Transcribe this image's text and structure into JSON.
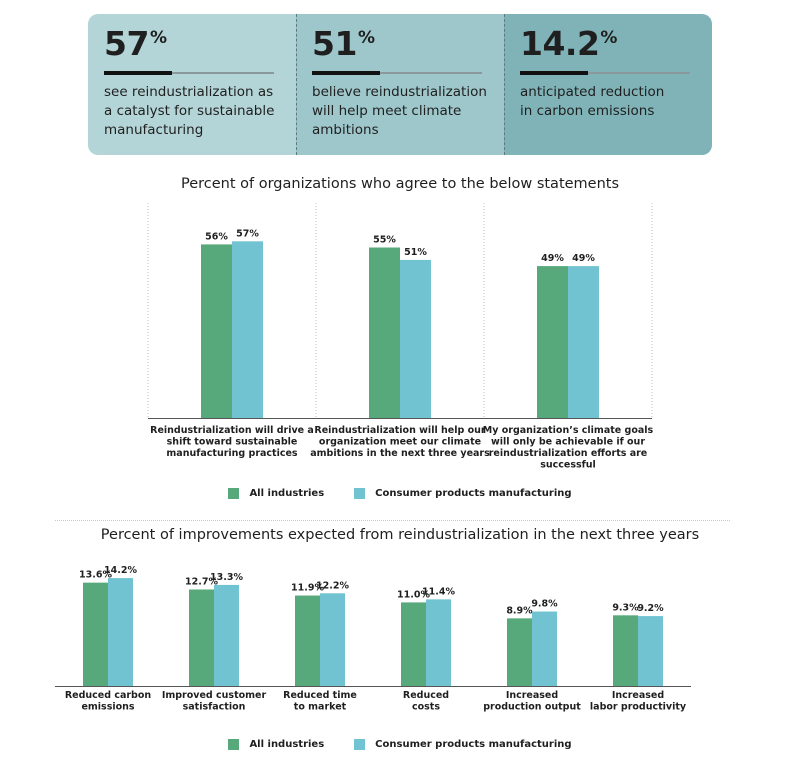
{
  "stats": [
    {
      "value": "57",
      "suffix": "%",
      "text": "see reindustrialization as\na catalyst for sustainable\nmanufacturing",
      "bg": "#b4d5d7"
    },
    {
      "value": "51",
      "suffix": "%",
      "text": "believe reindustrialization\nwill help meet climate\nambitions",
      "bg": "#9ec7cb"
    },
    {
      "value": "14.2",
      "suffix": "%",
      "text": "anticipated reduction\nin carbon emissions",
      "bg": "#7fb3b7"
    }
  ],
  "colors": {
    "all": "#57a87a",
    "consumer": "#72c3d2"
  },
  "legend": {
    "all": "All industries",
    "consumer": "Consumer products manufacturing"
  },
  "chart_data": [
    {
      "type": "bar",
      "title": "Percent of organizations who agree to the below statements",
      "categories": [
        "Reindustrialization will drive a shift toward sustainable manufacturing practices",
        "Reindustrialization will help our organization meet our climate ambitions in the next three years",
        "My organization's climate goals will only be achievable if our reindustrialization efforts are successful"
      ],
      "category_lines": [
        [
          "Reindustrialization will drive a",
          "shift toward sustainable",
          "manufacturing practices"
        ],
        [
          "Reindustrialization will help our",
          "organization meet our climate",
          "ambitions in the next three years"
        ],
        [
          "My organization’s climate goals",
          "will only be achievable if our",
          "reindustrialization efforts are",
          "successful"
        ]
      ],
      "series": [
        {
          "name": "All industries",
          "values": [
            56,
            55,
            49
          ],
          "labels": [
            "56%",
            "55%",
            "49%"
          ]
        },
        {
          "name": "Consumer products manufacturing",
          "values": [
            57,
            51,
            49
          ],
          "labels": [
            "57%",
            "51%",
            "49%"
          ]
        }
      ],
      "ylim": [
        0,
        100
      ],
      "legend": "bottom"
    },
    {
      "type": "bar",
      "title": "Percent of improvements expected from reindustrialization in the next three years",
      "categories": [
        "Reduced carbon emissions",
        "Improved customer satisfaction",
        "Reduced time to market",
        "Reduced costs",
        "Increased production output",
        "Increased labor productivity"
      ],
      "category_lines": [
        [
          "Reduced carbon",
          "emissions"
        ],
        [
          "Improved customer",
          "satisfaction"
        ],
        [
          "Reduced time",
          "to market"
        ],
        [
          "Reduced",
          "costs"
        ],
        [
          "Increased",
          "production output"
        ],
        [
          "Increased",
          "labor productivity"
        ]
      ],
      "series": [
        {
          "name": "All industries",
          "values": [
            13.6,
            12.7,
            11.9,
            11.0,
            8.9,
            9.3
          ],
          "labels": [
            "13.6%",
            "12.7%",
            "11.9%",
            "11.0%",
            "8.9%",
            "9.3%"
          ]
        },
        {
          "name": "Consumer products manufacturing",
          "values": [
            14.2,
            13.3,
            12.2,
            11.4,
            9.8,
            9.2
          ],
          "labels": [
            "14.2%",
            "13.3%",
            "12.2%",
            "11.4%",
            "9.8%",
            "9.2%"
          ]
        }
      ],
      "ylim": [
        0,
        15
      ],
      "legend": "bottom"
    }
  ]
}
